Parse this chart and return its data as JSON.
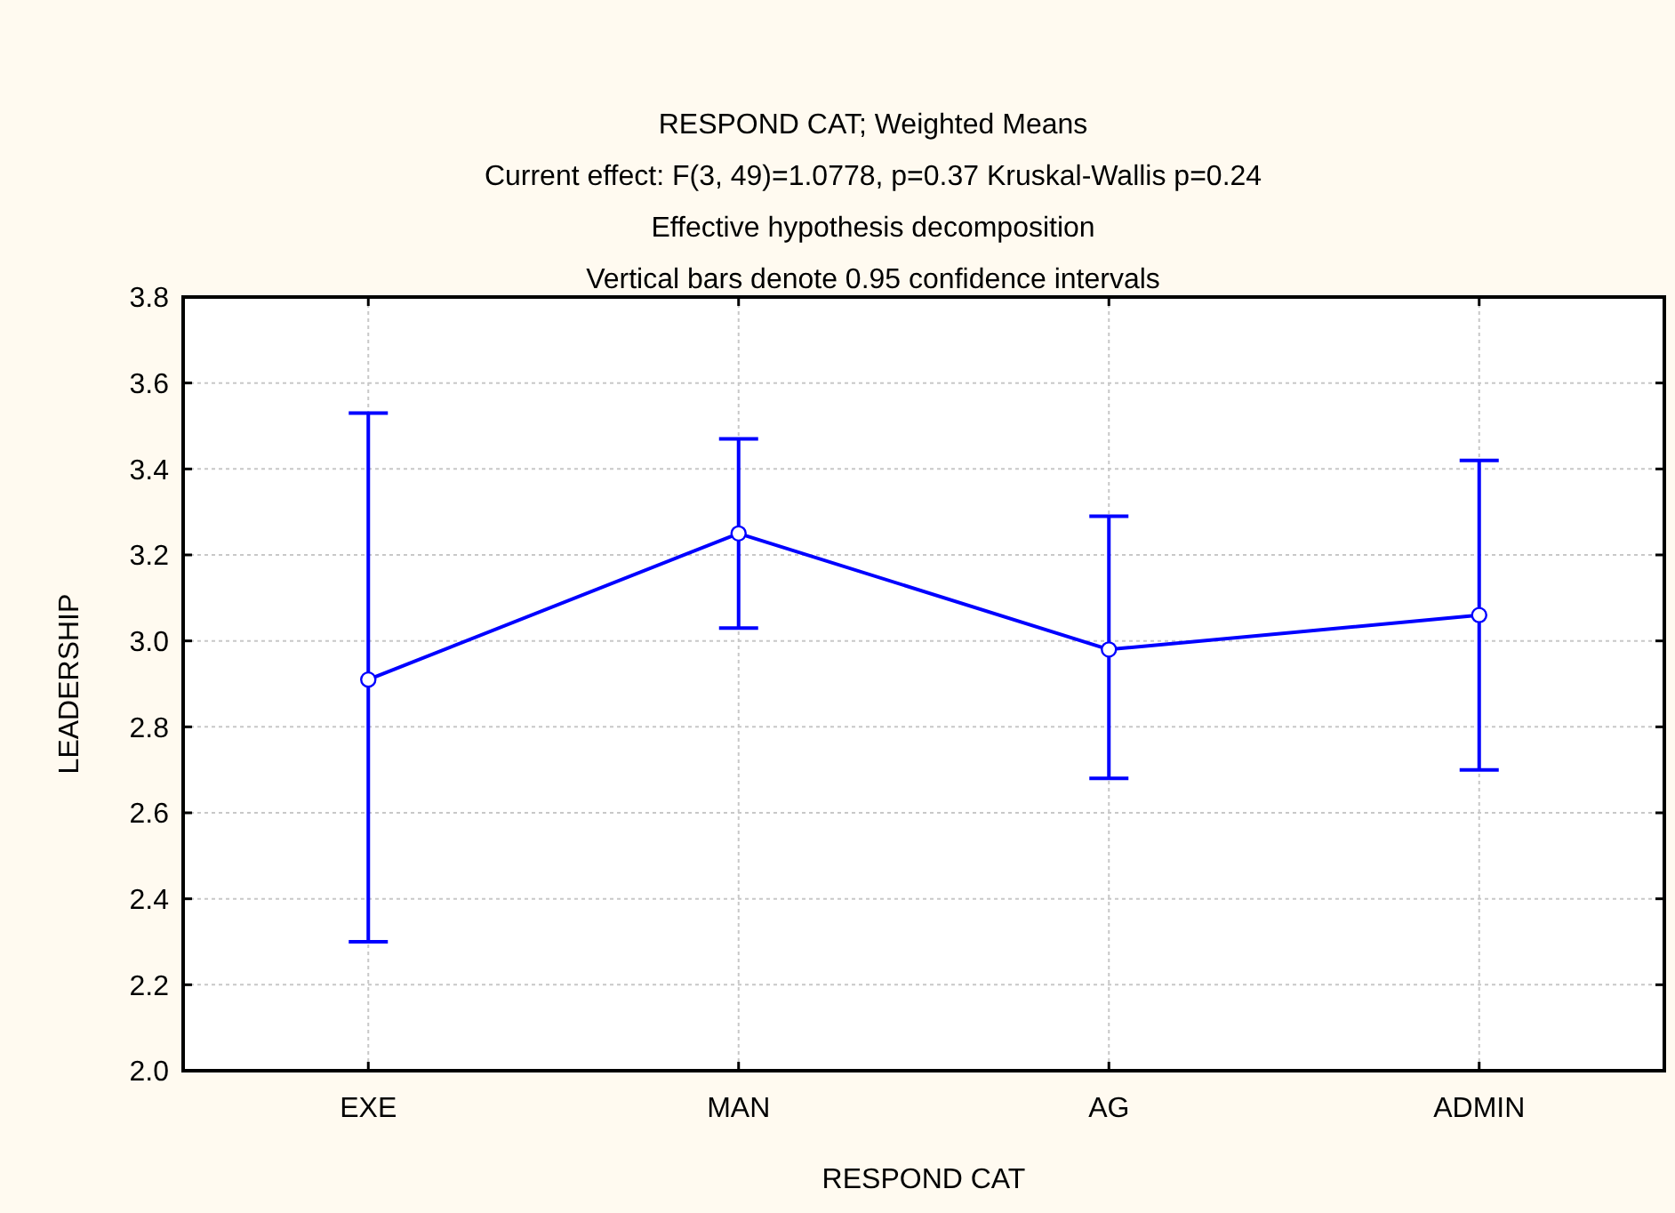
{
  "chart_data": {
    "type": "line",
    "title": "RESPOND CAT; Weighted Means",
    "subtitle": "Current effect: F(3, 49)=1.0778, p=0.37 Kruskal-Wallis p=0.24\nEffective hypothesis decomposition\nVertical bars denote 0.95 confidence intervals",
    "xlabel": "RESPOND CAT",
    "ylabel": "LEADERSHIP",
    "categories": [
      "EXE",
      "MAN",
      "AG",
      "ADMIN"
    ],
    "series": [
      {
        "color": "#0000ff",
        "values": [
          2.91,
          3.25,
          2.98,
          3.06
        ],
        "errors": [
          [
            2.3,
            3.53
          ],
          [
            3.03,
            3.47
          ],
          [
            2.68,
            3.29
          ],
          [
            2.7,
            3.42
          ]
        ]
      }
    ],
    "ylim": [
      2.0,
      3.8
    ],
    "yticks": [
      {
        "value": 2,
        "label": "2.0"
      },
      2.2,
      2.4,
      2.6,
      2.8,
      {
        "value": 3,
        "label": "3.0"
      },
      3.2,
      3.4,
      3.6,
      3.8
    ],
    "grid": true,
    "marker": "circle",
    "line_style": "solid"
  }
}
